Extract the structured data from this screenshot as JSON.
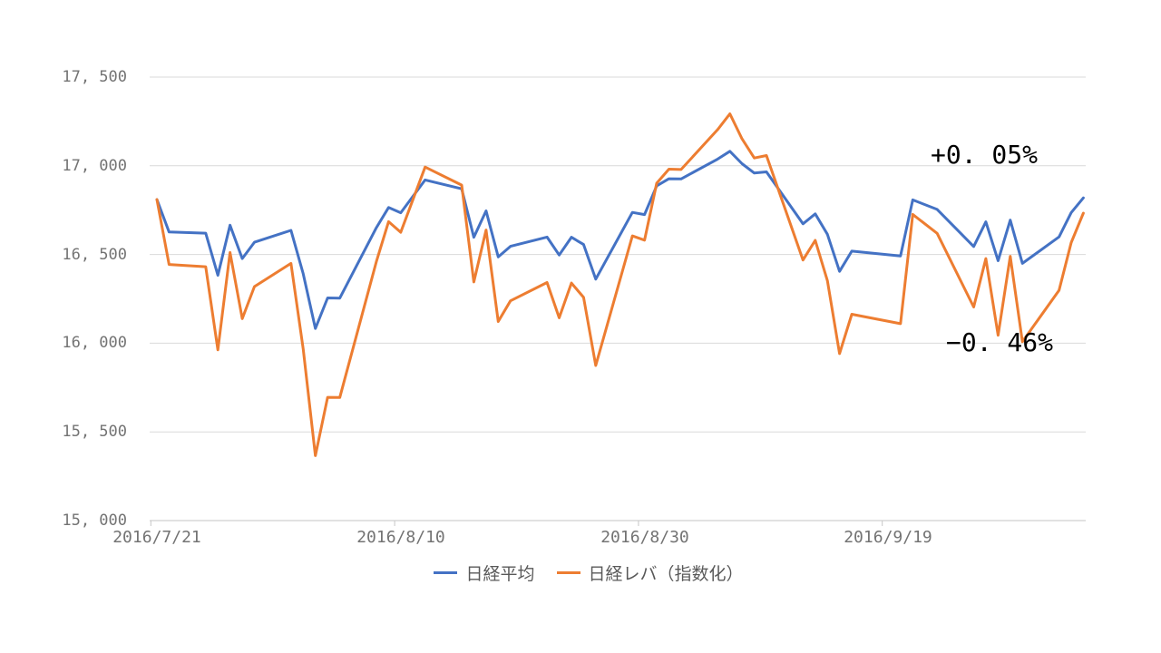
{
  "chart_data": {
    "type": "line",
    "title": "",
    "xlabel": "",
    "ylabel": "",
    "x": [
      "2016/7/21",
      "2016/7/22",
      "2016/7/25",
      "2016/7/26",
      "2016/7/27",
      "2016/7/28",
      "2016/7/29",
      "2016/8/1",
      "2016/8/2",
      "2016/8/3",
      "2016/8/4",
      "2016/8/5",
      "2016/8/8",
      "2016/8/9",
      "2016/8/10",
      "2016/8/12",
      "2016/8/15",
      "2016/8/16",
      "2016/8/17",
      "2016/8/18",
      "2016/8/19",
      "2016/8/22",
      "2016/8/23",
      "2016/8/24",
      "2016/8/25",
      "2016/8/26",
      "2016/8/29",
      "2016/8/30",
      "2016/8/31",
      "2016/9/1",
      "2016/9/2",
      "2016/9/5",
      "2016/9/6",
      "2016/9/7",
      "2016/9/8",
      "2016/9/9",
      "2016/9/12",
      "2016/9/13",
      "2016/9/14",
      "2016/9/15",
      "2016/9/16",
      "2016/9/20",
      "2016/9/21",
      "2016/9/23",
      "2016/9/26",
      "2016/9/27",
      "2016/9/28",
      "2016/9/29",
      "2016/9/30",
      "2016/10/3",
      "2016/10/4",
      "2016/10/5"
    ],
    "day_offsets": [
      0,
      1,
      4,
      5,
      6,
      7,
      8,
      11,
      12,
      13,
      14,
      15,
      18,
      19,
      20,
      22,
      25,
      26,
      27,
      28,
      29,
      32,
      33,
      34,
      35,
      36,
      39,
      40,
      41,
      42,
      43,
      46,
      47,
      48,
      49,
      50,
      53,
      54,
      55,
      56,
      57,
      61,
      62,
      64,
      67,
      68,
      69,
      70,
      71,
      74,
      75,
      76
    ],
    "x_axis_span_days": 76,
    "series": [
      {
        "name": "日経平均",
        "color": "#4472C4",
        "values": [
          16810,
          16627,
          16620,
          16383,
          16665,
          16477,
          16569,
          16636,
          16391,
          16083,
          16255,
          16254,
          16651,
          16765,
          16735,
          16920,
          16870,
          16597,
          16746,
          16486,
          16546,
          16598,
          16497,
          16597,
          16556,
          16361,
          16737,
          16725,
          16887,
          16927,
          16926,
          17038,
          17082,
          17012,
          16959,
          16966,
          16673,
          16729,
          16614,
          16405,
          16519,
          16492,
          16808,
          16754,
          16545,
          16684,
          16465,
          16694,
          16450,
          16599,
          16736,
          16819
        ]
      },
      {
        "name": "日経レバ（指数化）",
        "color": "#ED7D31",
        "values": [
          16810,
          16444,
          16431,
          15962,
          16511,
          16138,
          16319,
          16450,
          15967,
          15366,
          15695,
          15694,
          16459,
          16685,
          16625,
          16993,
          16891,
          16345,
          16638,
          16122,
          16239,
          16342,
          16143,
          16339,
          16258,
          15874,
          16605,
          16581,
          16902,
          16981,
          16979,
          17204,
          17293,
          17152,
          17044,
          17058,
          16469,
          16580,
          16353,
          15941,
          16163,
          16110,
          16726,
          16619,
          16204,
          16477,
          16045,
          16490,
          16008,
          16298,
          16567,
          16733
        ]
      }
    ],
    "ylim": [
      15000,
      17500
    ],
    "yticks": [
      15000,
      15500,
      16000,
      16500,
      17000,
      17500
    ],
    "ytick_labels": [
      "15, 000",
      "15, 500",
      "16, 000",
      "16, 500",
      "17, 000",
      "17, 500"
    ],
    "xtick_day_offsets": [
      0,
      20,
      40,
      60
    ],
    "xtick_labels": [
      "2016/7/21",
      "2016/8/10",
      "2016/8/30",
      "2016/9/19"
    ],
    "annotations": [
      {
        "label": "+0. 05%",
        "value": "+0.05%",
        "series": "日経平均"
      },
      {
        "label": "−0. 46%",
        "value": "-0.46%",
        "series": "日経レバ（指数化）"
      }
    ],
    "legend_position": "bottom",
    "grid": true,
    "grid_color": "#D9D9D9",
    "axis_color": "#C6C6C6",
    "axis_text_color": "#737373",
    "annotation_text_color": "#000000"
  }
}
